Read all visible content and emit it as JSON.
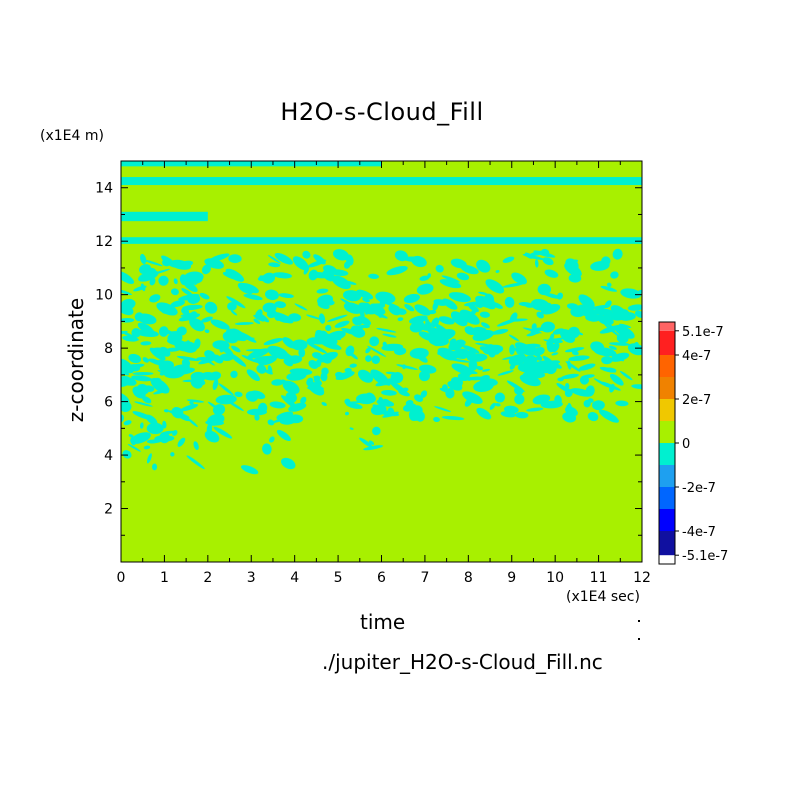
{
  "chart_data": {
    "type": "heatmap",
    "title": "H2O-s-Cloud_Fill",
    "xlabel": "time",
    "ylabel": "z-coordinate",
    "x_unit": "(x1E4 sec)",
    "y_unit": "(x1E4 m)",
    "xlim": [
      0,
      12
    ],
    "ylim": [
      0,
      15
    ],
    "x_ticks": [
      "0",
      "1",
      "2",
      "3",
      "4",
      "5",
      "6",
      "7",
      "8",
      "9",
      "10",
      "11",
      "12"
    ],
    "y_ticks": [
      "2",
      "4",
      "6",
      "8",
      "10",
      "12",
      "14"
    ],
    "source_file": "./jupiter_H2O-s-Cloud_Fill.nc",
    "colorbar": {
      "range": [
        -5.1e-07,
        5.1e-07
      ],
      "tick_labels": [
        "5.1e-7",
        "4e-7",
        "2e-7",
        "0",
        "-2e-7",
        "-4e-7",
        "-5.1e-7"
      ],
      "tick_values": [
        5.1e-07,
        4e-07,
        2e-07,
        0,
        -2e-07,
        -4e-07,
        -5.1e-07
      ],
      "levels": [
        {
          "min": -5.1e-07,
          "max": -4e-07,
          "color": "#1010a0"
        },
        {
          "min": -4e-07,
          "max": -3e-07,
          "color": "#0000ff"
        },
        {
          "min": -3e-07,
          "max": -2e-07,
          "color": "#0066ff"
        },
        {
          "min": -2e-07,
          "max": -1e-07,
          "color": "#1ea0f0"
        },
        {
          "min": -1e-07,
          "max": 0,
          "color": "#00f0d0"
        },
        {
          "min": 0,
          "max": 1e-07,
          "color": "#a8f000"
        },
        {
          "min": 1e-07,
          "max": 2e-07,
          "color": "#f0c800"
        },
        {
          "min": 2e-07,
          "max": 3e-07,
          "color": "#f08200"
        },
        {
          "min": 3e-07,
          "max": 4e-07,
          "color": "#ff6400"
        },
        {
          "min": 4e-07,
          "max": 5.1e-07,
          "color": "#ff2020"
        },
        {
          "min": 5.1e-07,
          "max": 5.5e-07,
          "color": "#ff6464"
        }
      ]
    },
    "field_description": {
      "background_color": "#a8f000",
      "anomaly_color": "#00f0d0",
      "bands": [
        {
          "z_min": 14.1,
          "z_max": 14.4,
          "x_min": 0,
          "x_max": 12
        },
        {
          "z_min": 14.8,
          "z_max": 15.0,
          "x_min": 0,
          "x_max": 6
        },
        {
          "z_min": 12.75,
          "z_max": 13.1,
          "x_min": 0,
          "x_max": 2
        },
        {
          "z_min": 11.9,
          "z_max": 12.15,
          "x_min": 0,
          "x_max": 12
        }
      ],
      "patchy_region": {
        "z_min": 5.3,
        "z_max": 11.6,
        "x_min": 0,
        "x_max": 12
      },
      "sparse_region": {
        "z_min": 3.2,
        "z_max": 5.3,
        "x_min": 0,
        "x_max": 6
      }
    }
  }
}
